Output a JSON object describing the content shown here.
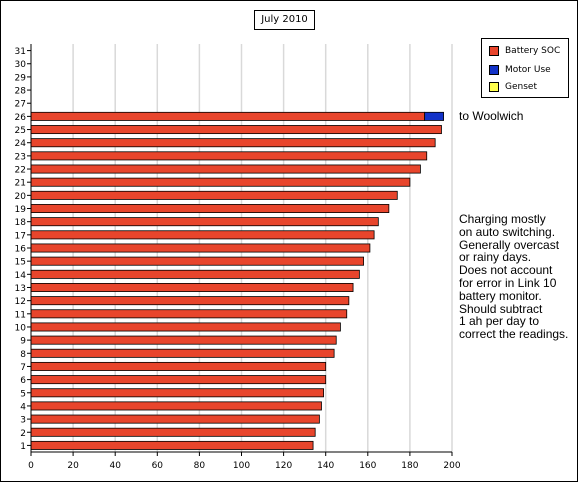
{
  "title": "July 2010",
  "legend": {
    "items": [
      {
        "label": "Battery SOC",
        "color": "#e8452c"
      },
      {
        "label": "Motor Use",
        "color": "#1232c8"
      },
      {
        "label": "Genset",
        "color": "#ffff4d"
      }
    ]
  },
  "annotations": {
    "note1": [
      "to Woolwich"
    ],
    "note2": [
      "Charging mostly",
      "on auto switching.",
      "Generally overcast",
      "or rainy days.",
      "Does not account",
      "for error in Link 10",
      "battery monitor.",
      "Should subtract",
      "1 ah per day to",
      "correct the readings."
    ]
  },
  "chart_data": {
    "type": "bar",
    "orientation": "horizontal",
    "stacked": true,
    "title": "July 2010",
    "categories": [
      "1",
      "2",
      "3",
      "4",
      "5",
      "6",
      "7",
      "8",
      "9",
      "10",
      "11",
      "12",
      "13",
      "14",
      "15",
      "16",
      "17",
      "18",
      "19",
      "20",
      "21",
      "22",
      "23",
      "24",
      "25",
      "26",
      "27",
      "28",
      "29",
      "30",
      "31"
    ],
    "series": [
      {
        "name": "Battery SOC",
        "color": "#e8452c",
        "values": [
          134,
          135,
          137,
          138,
          139,
          140,
          140,
          144,
          145,
          147,
          150,
          151,
          153,
          156,
          158,
          161,
          163,
          165,
          170,
          174,
          180,
          185,
          188,
          192,
          195,
          187,
          null,
          null,
          null,
          null,
          null
        ]
      },
      {
        "name": "Motor Use",
        "color": "#1232c8",
        "values": [
          0,
          0,
          0,
          0,
          0,
          0,
          0,
          0,
          0,
          0,
          0,
          0,
          0,
          0,
          0,
          0,
          0,
          0,
          0,
          0,
          0,
          0,
          0,
          0,
          0,
          9,
          null,
          null,
          null,
          null,
          null
        ]
      },
      {
        "name": "Genset",
        "color": "#ffff4d",
        "values": [
          0,
          0,
          0,
          0,
          0,
          0,
          0,
          0,
          0,
          0,
          0,
          0,
          0,
          0,
          0,
          0,
          0,
          0,
          0,
          0,
          0,
          0,
          0,
          0,
          0,
          0,
          null,
          null,
          null,
          null,
          null
        ]
      }
    ],
    "x_ticks": [
      0,
      20,
      40,
      60,
      80,
      100,
      120,
      140,
      160,
      180,
      200
    ],
    "xlim": [
      0,
      200
    ],
    "grid": "vertical",
    "legend_position": "top-right",
    "xlabel": "",
    "ylabel": ""
  }
}
